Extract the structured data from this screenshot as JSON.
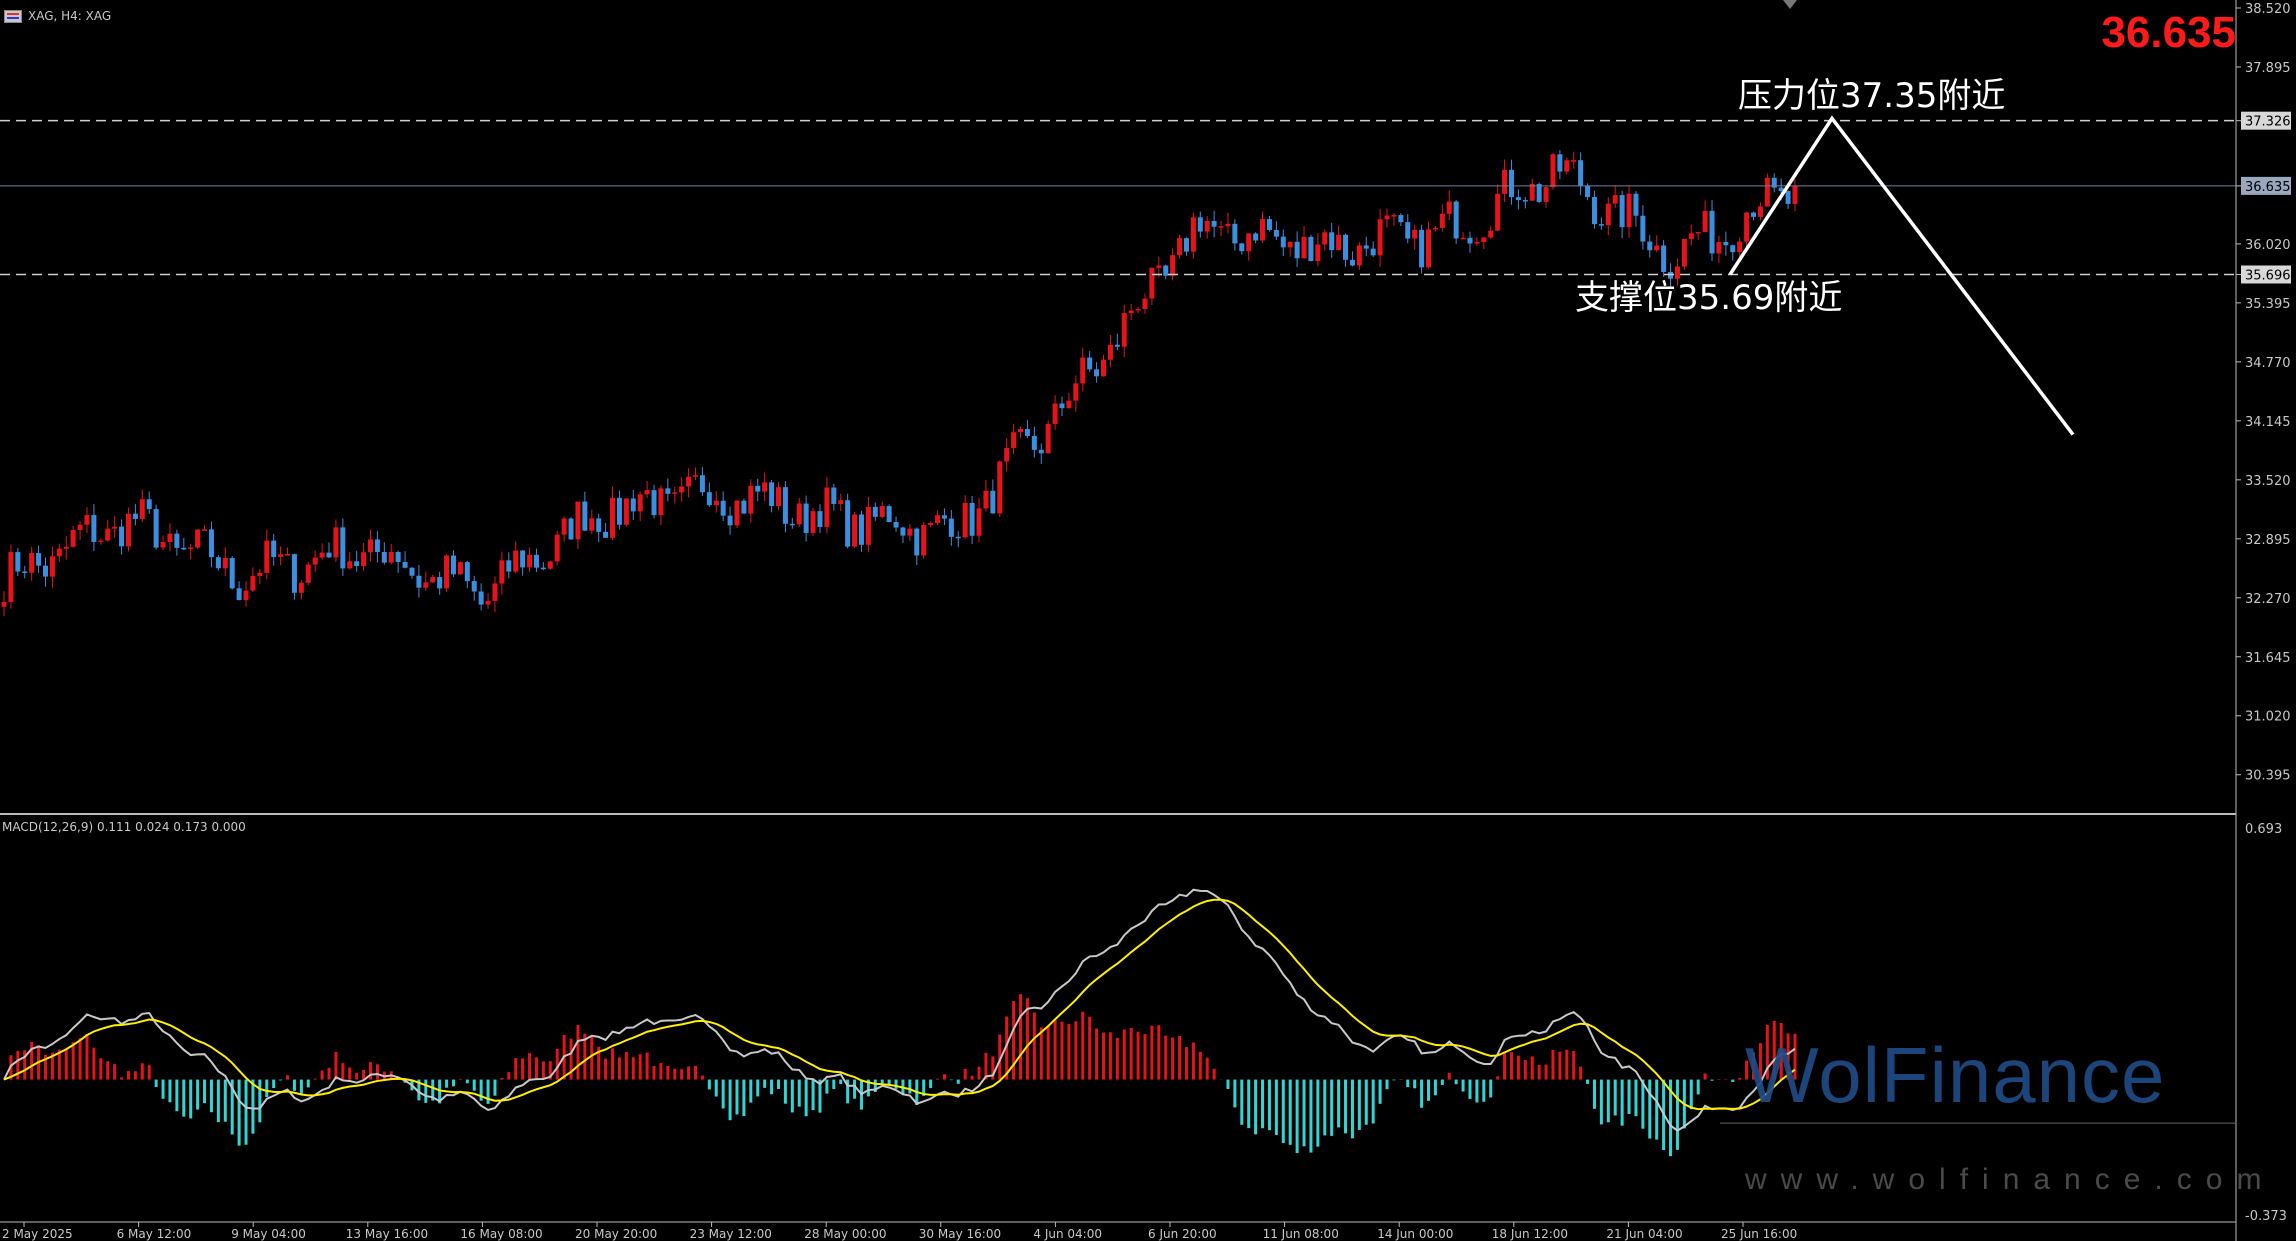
{
  "header": {
    "symbol_info": "XAG, H4:  XAG"
  },
  "current_price": "36.635",
  "macd_header": "MACD(12,26,9) 0.111 0.024 0.173 0.000",
  "annotations": {
    "resistance": "压力位37.35附近",
    "support": "支撑位35.69附近"
  },
  "watermark": {
    "brand": "WolFinance",
    "url": "www.wolfinance.com"
  },
  "price_axis": {
    "labels": [
      "38.520",
      "37.895",
      "37.326",
      "36.635",
      "36.020",
      "35.696",
      "35.395",
      "34.770",
      "34.145",
      "33.520",
      "32.895",
      "32.270",
      "31.645",
      "31.020",
      "30.395"
    ],
    "highlight": [
      "37.326",
      "36.635",
      "35.696"
    ]
  },
  "macd_axis": {
    "labels": [
      "0.693",
      "-0.373"
    ]
  },
  "time_axis": {
    "labels": [
      "2 May 2025",
      "6 May 12:00",
      "9 May 04:00",
      "13 May 16:00",
      "16 May 08:00",
      "20 May 20:00",
      "23 May 12:00",
      "28 May 00:00",
      "30 May 16:00",
      "4 Jun 04:00",
      "6 Jun 20:00",
      "11 Jun 08:00",
      "14 Jun 00:00",
      "18 Jun 12:00",
      "21 Jun 04:00",
      "25 Jun 16:00"
    ]
  },
  "chart_data": {
    "type": "candlestick",
    "symbol": "XAG",
    "timeframe": "H4",
    "ylim": [
      30.0,
      38.52
    ],
    "last_price": 36.635,
    "resistance_level": 37.326,
    "support_level": 35.696,
    "close_path": [
      {
        "t": "2 May 2025",
        "close": 32.45
      },
      {
        "t": "6 May 12:00",
        "close": 33.1
      },
      {
        "t": "9 May 04:00",
        "close": 32.5
      },
      {
        "t": "13 May 16:00",
        "close": 32.8
      },
      {
        "t": "16 May 08:00",
        "close": 32.3
      },
      {
        "t": "20 May 20:00",
        "close": 33.2
      },
      {
        "t": "23 May 12:00",
        "close": 33.4
      },
      {
        "t": "28 May 00:00",
        "close": 33.1
      },
      {
        "t": "30 May 16:00",
        "close": 33.0
      },
      {
        "t": "4 Jun 04:00",
        "close": 34.5
      },
      {
        "t": "6 Jun 20:00",
        "close": 36.2
      },
      {
        "t": "11 Jun 08:00",
        "close": 36.0
      },
      {
        "t": "14 Jun 00:00",
        "close": 36.1
      },
      {
        "t": "18 Jun 12:00",
        "close": 36.8
      },
      {
        "t": "21 Jun 04:00",
        "close": 35.9
      },
      {
        "t": "25 Jun 16:00",
        "close": 36.635
      }
    ],
    "projection": [
      {
        "from": 35.696,
        "to": 37.35
      },
      {
        "from": 37.35,
        "to": 34.0
      }
    ],
    "macd": {
      "params": [
        12,
        26,
        9
      ],
      "values": [
        0.111,
        0.024,
        0.173,
        0.0
      ],
      "ylim": [
        -0.373,
        0.693
      ]
    },
    "colors": {
      "up": "#e8121b",
      "down": "#3a8fe0",
      "hist_pos": "#e8121b",
      "hist_neg": "#2fd6d6",
      "signal": "#ffee00",
      "macd": "#c8c8c8"
    }
  }
}
